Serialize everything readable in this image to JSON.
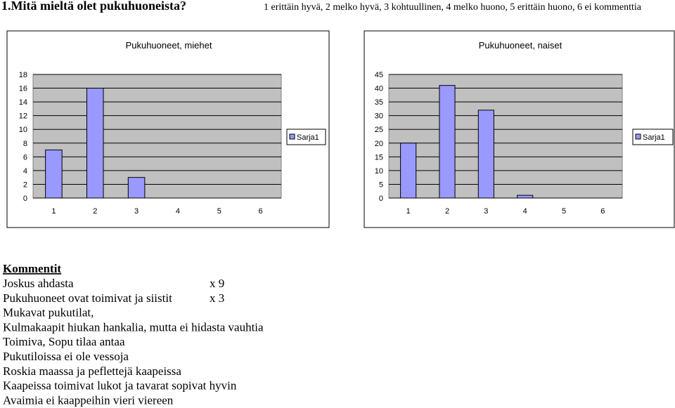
{
  "heading": "1.Mitä mieltä olet pukuhuoneista?",
  "scale_note": "1 erittäin hyvä, 2 melko hyvä, 3 kohtuullinen, 4 melko huono, 5 erittäin huono, 6 ei kommenttia",
  "chart_data": [
    {
      "type": "bar",
      "title": "Pukuhuoneet, miehet",
      "categories": [
        "1",
        "2",
        "3",
        "4",
        "5",
        "6"
      ],
      "series": [
        {
          "name": "Sarja1",
          "color": "#9999ff",
          "values": [
            7,
            16,
            3,
            0,
            0,
            0
          ]
        }
      ],
      "ylim": [
        0,
        18
      ],
      "yticks": [
        0,
        2,
        4,
        6,
        8,
        10,
        12,
        14,
        16,
        18
      ],
      "grid": true,
      "legend": "right"
    },
    {
      "type": "bar",
      "title": "Pukuhuoneet, naiset",
      "categories": [
        "1",
        "2",
        "3",
        "4",
        "5",
        "6"
      ],
      "series": [
        {
          "name": "Sarja1",
          "color": "#9999ff",
          "values": [
            20,
            41,
            32,
            1,
            0,
            0
          ]
        }
      ],
      "ylim": [
        0,
        45
      ],
      "yticks": [
        0,
        5,
        10,
        15,
        20,
        25,
        30,
        35,
        40,
        45
      ],
      "grid": true,
      "legend": "right"
    }
  ],
  "comments": {
    "title": "Kommentit",
    "rows": [
      [
        "Joskus ahdasta",
        "x 9"
      ],
      [
        "Pukuhuoneet ovat toimivat ja siistit",
        "x 3"
      ],
      [
        "Mukavat pukutilat,"
      ],
      [
        "Kulmakaapit hiukan hankalia, mutta ei hidasta vauhtia"
      ],
      [
        "Toimiva, Sopu tilaa antaa"
      ],
      [
        "Pukutiloissa ei ole vessoja"
      ],
      [
        "Roskia maassa ja peflettejä kaapeissa"
      ],
      [
        "Kaapeissa toimivat lukot ja tavarat sopivat hyvin"
      ],
      [
        "Avaimia ei kaappeihin vieri viereen"
      ]
    ]
  }
}
